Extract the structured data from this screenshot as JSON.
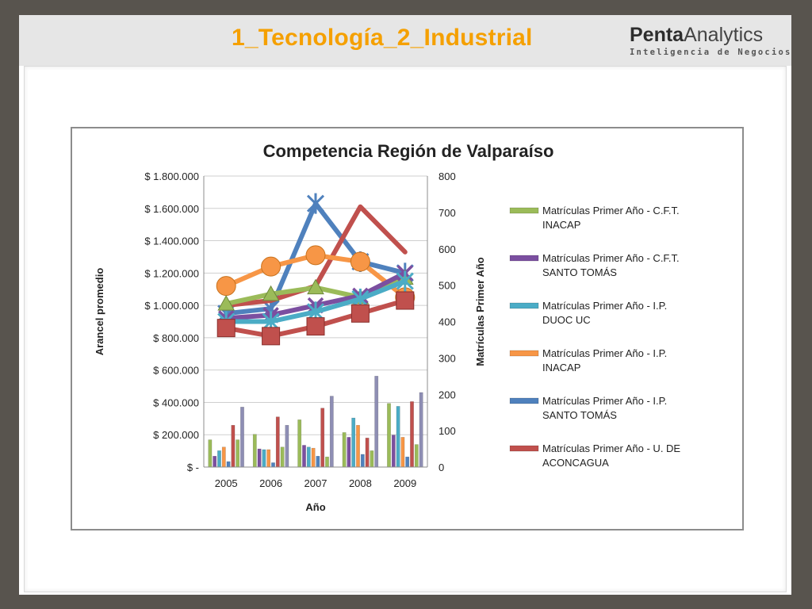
{
  "slide": {
    "title": "1_Tecnología_2_Industrial",
    "logo": {
      "name_bold": "Penta",
      "name_regular": "Analytics",
      "tagline": "Inteligencia de Negocios",
      "icon": "pentaanalytics-logo"
    }
  },
  "colors": {
    "title": "#f5a000",
    "cft_inacap": "#9bbb59",
    "cft_santo_tomas": "#7b4fa0",
    "ip_duoc_uc": "#4bacc6",
    "ip_inacap": "#f79646",
    "ip_santo_tomas": "#4f81bd",
    "u_aconcagua": "#c0504d",
    "u_extra": "#8e8eb4"
  },
  "chart_data": {
    "type": "bar",
    "title": "Competencia Región de Valparaíso",
    "xlabel": "Año",
    "ylabel": "Arancel promedio",
    "y2label": "Matrículas Primer Año",
    "categories": [
      "2005",
      "2006",
      "2007",
      "2008",
      "2009"
    ],
    "ylim": [
      0,
      1800000
    ],
    "y2lim": [
      0,
      800
    ],
    "y_ticks": [
      "$ -",
      "$ 200.000",
      "$ 400.000",
      "$ 600.000",
      "$ 800.000",
      "$ 1.000.000",
      "$ 1.200.000",
      "$ 1.400.000",
      "$ 1.600.000",
      "$ 1.800.000"
    ],
    "y2_ticks": [
      "0",
      "100",
      "200",
      "300",
      "400",
      "500",
      "600",
      "700",
      "800"
    ],
    "grid": true,
    "legend_position": "right",
    "bar_series": [
      {
        "name": "Matrículas Primer Año - C.F.T. INACAP",
        "color": "#9bbb59",
        "values": [
          75,
          90,
          130,
          95,
          175
        ]
      },
      {
        "name": "Matrículas Primer Año - C.F.T. SANTO TOMÁS",
        "color": "#7b4fa0",
        "values": [
          30,
          50,
          60,
          82,
          88
        ]
      },
      {
        "name": "Matrículas Primer Año - I.P. DUOC UC",
        "color": "#4bacc6",
        "values": [
          45,
          48,
          55,
          135,
          167
        ]
      },
      {
        "name": "Matrículas Primer Año - I.P. INACAP",
        "color": "#f79646",
        "values": [
          55,
          48,
          52,
          115,
          82
        ]
      },
      {
        "name": "Matrículas Primer Año - I.P. SANTO TOMÁS",
        "color": "#4f81bd",
        "values": [
          15,
          12,
          30,
          35,
          28
        ]
      },
      {
        "name": "Matrículas Primer Año - U. DE ACONCAGUA",
        "color": "#c0504d",
        "values": [
          115,
          138,
          162,
          80,
          180
        ]
      },
      {
        "name": "",
        "color": "#9bbb59",
        "values": [
          75,
          55,
          28,
          45,
          62
        ]
      },
      {
        "name": "",
        "color": "#8e8eb4",
        "values": [
          165,
          115,
          195,
          250,
          205
        ]
      }
    ],
    "line_series": [
      {
        "name": "",
        "color": "#4f81bd",
        "marker": "star",
        "values": [
          950000,
          980000,
          1630000,
          1270000,
          1200000
        ]
      },
      {
        "name": "",
        "color": "#c0504d",
        "marker": "none",
        "values": [
          1000000,
          1030000,
          1120000,
          1610000,
          1330000
        ]
      },
      {
        "name": "",
        "color": "#f79646",
        "marker": "circle",
        "values": [
          1120000,
          1240000,
          1310000,
          1270000,
          1050000
        ]
      },
      {
        "name": "",
        "color": "#9bbb59",
        "marker": "triangle",
        "values": [
          1010000,
          1070000,
          1110000,
          1050000,
          1170000
        ]
      },
      {
        "name": "",
        "color": "#7b4fa0",
        "marker": "x",
        "values": [
          920000,
          940000,
          1000000,
          1060000,
          1200000
        ]
      },
      {
        "name": "",
        "color": "#4bacc6",
        "marker": "star",
        "values": [
          900000,
          900000,
          960000,
          1040000,
          1150000
        ]
      },
      {
        "name": "",
        "color": "#c0504d",
        "marker": "square",
        "values": [
          860000,
          810000,
          870000,
          950000,
          1030000
        ]
      }
    ],
    "legend_lines": [
      [
        "Matrículas Primer Año - C.F.T.",
        "INACAP"
      ],
      [
        "Matrículas Primer Año - C.F.T.",
        "SANTO TOMÁS"
      ],
      [
        "Matrículas Primer Año - I.P.",
        "DUOC UC"
      ],
      [
        "Matrículas Primer Año - I.P.",
        "INACAP"
      ],
      [
        "Matrículas Primer Año - I.P.",
        "SANTO TOMÁS"
      ],
      [
        "Matrículas Primer Año - U. DE",
        "ACONCAGUA"
      ]
    ]
  }
}
